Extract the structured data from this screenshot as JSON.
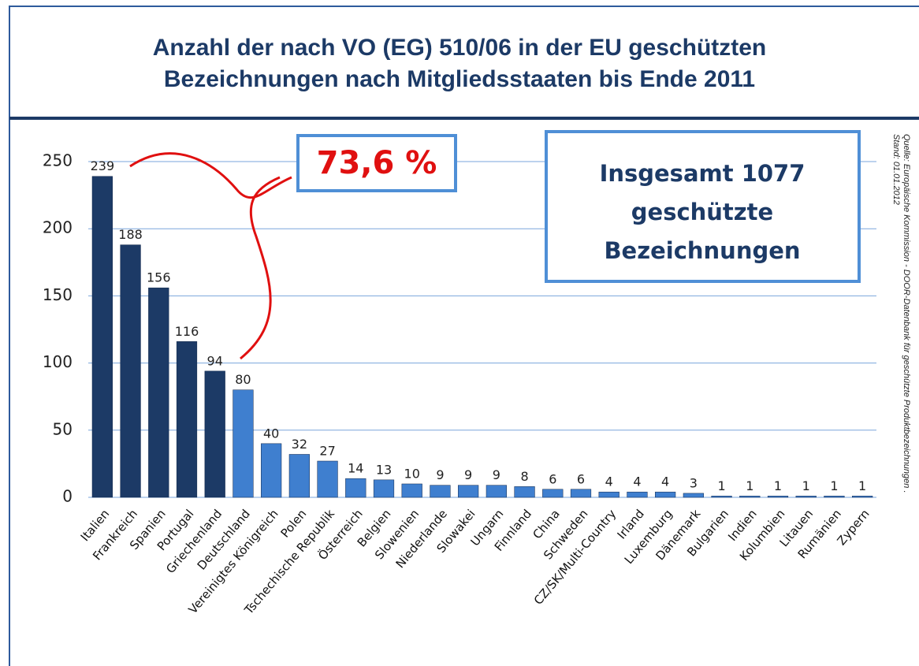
{
  "chart_data": {
    "type": "bar",
    "title_lines": [
      "Anzahl der nach VO (EG) 510/06 in der EU geschützten",
      "Bezeichnungen nach Mitgliedsstaaten bis Ende 2011"
    ],
    "categories": [
      "Italien",
      "Frankreich",
      "Spanien",
      "Portugal",
      "Griechenland",
      "Deutschland",
      "Vereinigtes Königreich",
      "Polen",
      "Tschechische Republik",
      "Österreich",
      "Belgien",
      "Slowenien",
      "Niederlande",
      "Slowakei",
      "Ungarn",
      "Finnland",
      "China",
      "Schweden",
      "CZ/SK/Multi-Country",
      "Irland",
      "Luxemburg",
      "Dänemark",
      "Bulgarien",
      "Indien",
      "Kolumbien",
      "Litauen",
      "Rumänien",
      "Zypern"
    ],
    "values": [
      239,
      188,
      156,
      116,
      94,
      80,
      40,
      32,
      27,
      14,
      13,
      10,
      9,
      9,
      9,
      8,
      6,
      6,
      4,
      4,
      4,
      3,
      1,
      1,
      1,
      1,
      1,
      1
    ],
    "colors": [
      "#1c3a66",
      "#1c3a66",
      "#1c3a66",
      "#1c3a66",
      "#1c3a66",
      "#3f7fcf",
      "#3f7fcf",
      "#3f7fcf",
      "#3f7fcf",
      "#3f7fcf",
      "#3f7fcf",
      "#3f7fcf",
      "#3f7fcf",
      "#3f7fcf",
      "#3f7fcf",
      "#3f7fcf",
      "#3f7fcf",
      "#3f7fcf",
      "#3f7fcf",
      "#3f7fcf",
      "#3f7fcf",
      "#3f7fcf",
      "#3f7fcf",
      "#3f7fcf",
      "#3f7fcf",
      "#3f7fcf",
      "#3f7fcf",
      "#3f7fcf"
    ],
    "ylim": [
      0,
      250
    ],
    "yticks": [
      0,
      50,
      100,
      150,
      200,
      250
    ],
    "grid": true,
    "share_annotation": "73,6 %",
    "total_annotation_lines": [
      "Insgesamt 1077",
      "geschützte",
      "Bezeichnungen"
    ],
    "source_lines": [
      "Quelle: Europäische Kommission - DOOR-Datenbank für geschützte Produktbezeichnungen .",
      "Stand: 01.01.2012"
    ]
  }
}
